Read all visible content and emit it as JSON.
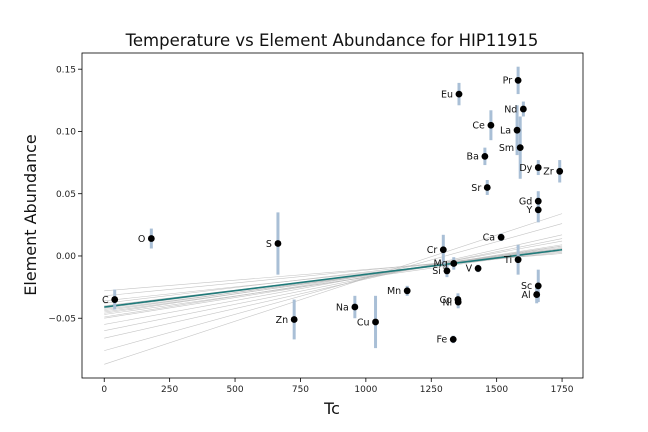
{
  "chart_data": {
    "type": "scatter",
    "title": "Temperature vs Element Abundance for HIP11915",
    "xlabel": "Tc",
    "ylabel": "Element Abundance",
    "xlim": [
      -85,
      1830
    ],
    "ylim": [
      -0.098,
      0.163
    ],
    "xticks": [
      0,
      250,
      500,
      750,
      1000,
      1250,
      1500,
      1750
    ],
    "yticks": [
      -0.05,
      0.0,
      0.05,
      0.1,
      0.15
    ],
    "xtick_labels": [
      "0",
      "250",
      "500",
      "750",
      "1000",
      "1250",
      "1500",
      "1750"
    ],
    "ytick_labels": [
      "−0.05",
      "0.00",
      "0.05",
      "0.10",
      "0.15"
    ],
    "grid": false,
    "colors": {
      "points": "#000000",
      "errorbars": "#a9bfd6",
      "fit": "#1f7a7a",
      "sample_lines": "#bbbbbb"
    },
    "points": [
      {
        "label": "C",
        "x": 40,
        "y": -0.035,
        "err": 0.008
      },
      {
        "label": "O",
        "x": 180,
        "y": 0.014,
        "err": 0.008
      },
      {
        "label": "S",
        "x": 664,
        "y": 0.01,
        "err": 0.025
      },
      {
        "label": "Zn",
        "x": 726,
        "y": -0.051,
        "err": 0.016
      },
      {
        "label": "Na",
        "x": 958,
        "y": -0.041,
        "err": 0.009
      },
      {
        "label": "Cu",
        "x": 1037,
        "y": -0.053,
        "err": 0.021
      },
      {
        "label": "Mn",
        "x": 1158,
        "y": -0.028,
        "err": 0.004
      },
      {
        "label": "Cr",
        "x": 1296,
        "y": 0.005,
        "err": 0.012
      },
      {
        "label": "Si",
        "x": 1310,
        "y": -0.012,
        "err": 0.005
      },
      {
        "label": "Fe",
        "x": 1334,
        "y": -0.067,
        "err": 0.003
      },
      {
        "label": "Mg",
        "x": 1336,
        "y": -0.006,
        "err": 0.005
      },
      {
        "label": "Co",
        "x": 1352,
        "y": -0.035,
        "err": 0.005
      },
      {
        "label": "Ni",
        "x": 1353,
        "y": -0.037,
        "err": 0.005
      },
      {
        "label": "Eu",
        "x": 1356,
        "y": 0.13,
        "err": 0.009
      },
      {
        "label": "V",
        "x": 1429,
        "y": -0.01,
        "err": 0.003
      },
      {
        "label": "Ca",
        "x": 1517,
        "y": 0.015,
        "err": 0.003
      },
      {
        "label": "Ba",
        "x": 1455,
        "y": 0.08,
        "err": 0.007
      },
      {
        "label": "Ce",
        "x": 1478,
        "y": 0.105,
        "err": 0.012
      },
      {
        "label": "Sr",
        "x": 1464,
        "y": 0.055,
        "err": 0.006
      },
      {
        "label": "Pr",
        "x": 1582,
        "y": 0.141,
        "err": 0.011
      },
      {
        "label": "La",
        "x": 1578,
        "y": 0.101,
        "err": 0.02
      },
      {
        "label": "Nd",
        "x": 1602,
        "y": 0.118,
        "err": 0.006
      },
      {
        "label": "Sm",
        "x": 1590,
        "y": 0.087,
        "err": 0.025
      },
      {
        "label": "Ti",
        "x": 1582,
        "y": -0.003,
        "err": 0.012
      },
      {
        "label": "Dy",
        "x": 1659,
        "y": 0.071,
        "err": 0.006
      },
      {
        "label": "Zr",
        "x": 1741,
        "y": 0.068,
        "err": 0.009
      },
      {
        "label": "Gd",
        "x": 1659,
        "y": 0.044,
        "err": 0.008
      },
      {
        "label": "Y",
        "x": 1659,
        "y": 0.037,
        "err": 0.01
      },
      {
        "label": "Sc",
        "x": 1659,
        "y": -0.024,
        "err": 0.013
      },
      {
        "label": "Al",
        "x": 1653,
        "y": -0.031,
        "err": 0.007
      }
    ],
    "fit_line": {
      "x": [
        0,
        1750
      ],
      "y": [
        -0.041,
        0.005
      ]
    },
    "sample_lines": [
      {
        "x": [
          0,
          1750
        ],
        "y": [
          -0.028,
          0.002
        ]
      },
      {
        "x": [
          0,
          1750
        ],
        "y": [
          -0.032,
          0.004
        ]
      },
      {
        "x": [
          0,
          1750
        ],
        "y": [
          -0.036,
          0.003
        ]
      },
      {
        "x": [
          0,
          1750
        ],
        "y": [
          -0.038,
          0.006
        ]
      },
      {
        "x": [
          0,
          1750
        ],
        "y": [
          -0.04,
          0.004
        ]
      },
      {
        "x": [
          0,
          1750
        ],
        "y": [
          -0.042,
          0.006
        ]
      },
      {
        "x": [
          0,
          1750
        ],
        "y": [
          -0.043,
          0.005
        ]
      },
      {
        "x": [
          0,
          1750
        ],
        "y": [
          -0.044,
          0.007
        ]
      },
      {
        "x": [
          0,
          1750
        ],
        "y": [
          -0.045,
          0.006
        ]
      },
      {
        "x": [
          0,
          1750
        ],
        "y": [
          -0.046,
          0.008
        ]
      },
      {
        "x": [
          0,
          1750
        ],
        "y": [
          -0.047,
          0.005
        ]
      },
      {
        "x": [
          0,
          1750
        ],
        "y": [
          -0.049,
          0.009
        ]
      },
      {
        "x": [
          0,
          1750
        ],
        "y": [
          -0.05,
          0.008
        ]
      },
      {
        "x": [
          0,
          1750
        ],
        "y": [
          -0.055,
          0.012
        ]
      },
      {
        "x": [
          0,
          1750
        ],
        "y": [
          -0.06,
          0.014
        ]
      },
      {
        "x": [
          0,
          1750
        ],
        "y": [
          -0.066,
          0.017
        ]
      },
      {
        "x": [
          0,
          1750
        ],
        "y": [
          -0.076,
          0.026
        ]
      },
      {
        "x": [
          0,
          1750
        ],
        "y": [
          -0.087,
          0.034
        ]
      }
    ]
  }
}
